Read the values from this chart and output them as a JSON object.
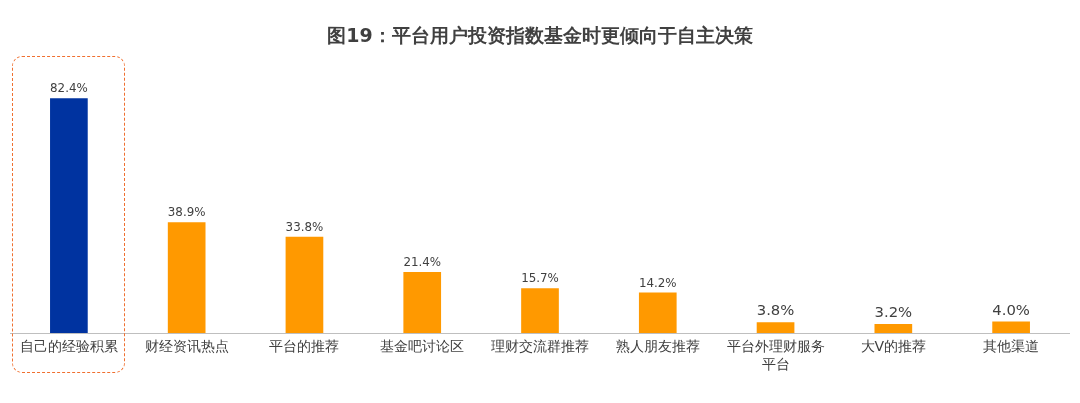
{
  "chart_data": {
    "type": "bar",
    "title": "图19：平台用户投资指数基金时更倾向于自主决策",
    "categories": [
      "自己的经验积累",
      "财经资讯热点",
      "平台的推荐",
      "基金吧讨论区",
      "理财交流群推荐",
      "熟人朋友推荐",
      "平台外理财服务平台",
      "大V的推荐",
      "其他渠道"
    ],
    "values": [
      82.4,
      38.9,
      33.8,
      21.4,
      15.7,
      14.2,
      3.8,
      3.2,
      4.0
    ],
    "value_labels": [
      "82.4%",
      "38.9%",
      "33.8%",
      "21.4%",
      "15.7%",
      "14.2%",
      "3.8%",
      "3.2%",
      "4.0%"
    ],
    "colors": [
      "#0033a0",
      "#ff9900",
      "#ff9900",
      "#ff9900",
      "#ff9900",
      "#ff9900",
      "#ff9900",
      "#ff9900",
      "#ff9900"
    ],
    "grid": false,
    "legend": false
  }
}
